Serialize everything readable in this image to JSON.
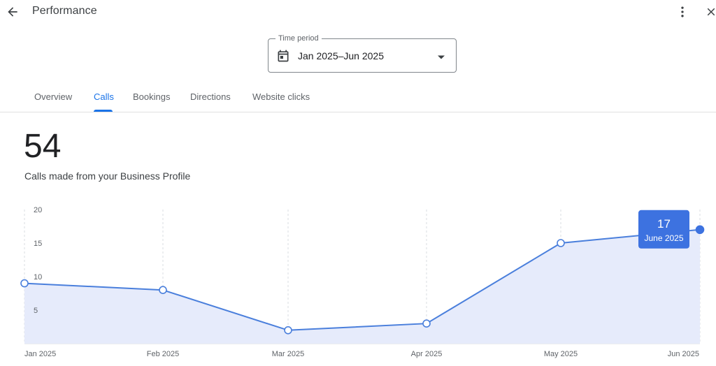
{
  "header": {
    "title": "Performance",
    "back_icon": "arrow-back-icon",
    "more_icon": "more-vert-icon",
    "close_icon": "close-icon"
  },
  "time_period": {
    "label": "Time period",
    "value": "Jan 2025–Jun 2025",
    "icon": "calendar-icon",
    "dropdown_icon": "arrow-drop-down-icon"
  },
  "tabs": [
    {
      "label": "Overview",
      "active": false
    },
    {
      "label": "Calls",
      "active": true
    },
    {
      "label": "Bookings",
      "active": false
    },
    {
      "label": "Directions",
      "active": false
    },
    {
      "label": "Website clicks",
      "active": false
    }
  ],
  "metric": {
    "value": "54",
    "label": "Calls made from your Business Profile"
  },
  "colors": {
    "accent": "#1a73e8",
    "line": "#4a7fdc",
    "area": "#e6ebfb",
    "tooltip": "#3d72e0"
  },
  "chart_data": {
    "type": "area",
    "x": [
      "Jan 2025",
      "Feb 2025",
      "Mar 2025",
      "Apr 2025",
      "May 2025",
      "Jun 2025"
    ],
    "values": [
      9,
      8,
      2,
      3,
      15,
      17
    ],
    "y_ticks": [
      "20",
      "15",
      "10",
      "5"
    ],
    "ylim": [
      0,
      20
    ],
    "grid": "vertical-dashed",
    "tooltip": {
      "value": "17",
      "label": "June 2025"
    }
  }
}
